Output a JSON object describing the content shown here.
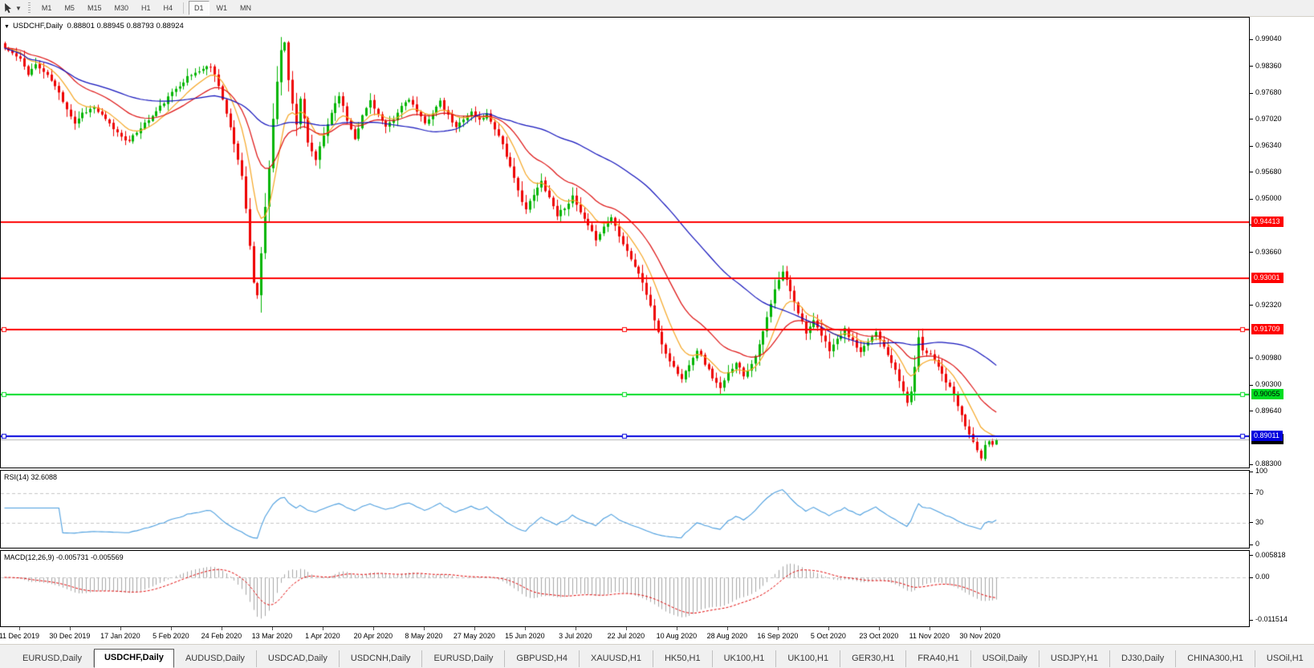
{
  "toolbar": {
    "timeframes": [
      "M1",
      "M5",
      "M15",
      "M30",
      "H1",
      "H4",
      "D1",
      "W1",
      "MN"
    ],
    "active_timeframe": "D1",
    "separator_after": "H4",
    "dropdown_caret_glyph": "▼"
  },
  "chart": {
    "title_symbol": "USDCHF,Daily",
    "title_ohlc": "0.88801 0.88945 0.88793 0.88924",
    "expand_glyph": "▼"
  },
  "price_axis": {
    "ticks": [
      "0.99040",
      "0.98360",
      "0.97680",
      "0.97020",
      "0.96340",
      "0.95680",
      "0.95000",
      "0.94340",
      "0.93660",
      "0.92320",
      "0.90980",
      "0.90300",
      "0.89640",
      "0.88300"
    ]
  },
  "rsi": {
    "label": "RSI(14) 32.6088",
    "value": 32.6088,
    "axis_labels": [
      "100",
      "70",
      "30",
      "0"
    ],
    "dashed_levels": [
      70,
      30
    ],
    "line_color": "#4a9dde"
  },
  "macd": {
    "label": "MACD(12,26,9) -0.005731 -0.005569",
    "macd_value": -0.005731,
    "signal_value": -0.005569,
    "axis_labels": [
      "0.005818",
      "0.00",
      "-0.011514"
    ],
    "axis_values": [
      0.005818,
      0.0,
      -0.011514
    ],
    "histogram_color": "#a6a6a6",
    "signal_color": "#e00000"
  },
  "dates": [
    "11 Dec 2019",
    "30 Dec 2019",
    "17 Jan 2020",
    "5 Feb 2020",
    "24 Feb 2020",
    "13 Mar 2020",
    "1 Apr 2020",
    "20 Apr 2020",
    "8 May 2020",
    "27 May 2020",
    "15 Jun 2020",
    "3 Jul 2020",
    "22 Jul 2020",
    "10 Aug 2020",
    "28 Aug 2020",
    "16 Sep 2020",
    "5 Oct 2020",
    "23 Oct 2020",
    "11 Nov 2020",
    "30 Nov 2020"
  ],
  "tabs": {
    "items": [
      "EURUSD,Daily",
      "USDCHF,Daily",
      "AUDUSD,Daily",
      "USDCAD,Daily",
      "USDCNH,Daily",
      "EURUSD,Daily",
      "GBPUSD,H4",
      "XAUUSD,H1",
      "HK50,H1",
      "UK100,H1",
      "UK100,H1",
      "GER30,H1",
      "FRA40,H1",
      "USOil,Daily",
      "USDJPY,H1",
      "DJ30,Daily",
      "CHINA300,H1",
      "USOil,H1"
    ],
    "active_index": 1,
    "scroll_left_glyph": "◀",
    "scroll_right_glyph": "▶"
  },
  "chart_data": {
    "type": "candlestick",
    "symbol": "USDCHF",
    "period": "Daily",
    "bars": 256,
    "seed": 11,
    "noise": 0.00045,
    "price_max": 0.99588,
    "price_min": 0.8822,
    "last_candle": {
      "open": 0.88801,
      "high": 0.88945,
      "low": 0.88793,
      "close": 0.88924
    },
    "anchors": [
      [
        0,
        0.9882
      ],
      [
        2,
        0.9868
      ],
      [
        4,
        0.9852
      ],
      [
        6,
        0.9818
      ],
      [
        8,
        0.984
      ],
      [
        10,
        0.9822
      ],
      [
        12,
        0.98
      ],
      [
        14,
        0.9768
      ],
      [
        16,
        0.973
      ],
      [
        18,
        0.9692
      ],
      [
        20,
        0.9718
      ],
      [
        23,
        0.9732
      ],
      [
        26,
        0.97
      ],
      [
        29,
        0.9668
      ],
      [
        32,
        0.9645
      ],
      [
        35,
        0.9682
      ],
      [
        38,
        0.971
      ],
      [
        41,
        0.9745
      ],
      [
        44,
        0.978
      ],
      [
        47,
        0.9808
      ],
      [
        50,
        0.9825
      ],
      [
        53,
        0.9838
      ],
      [
        55,
        0.979
      ],
      [
        57,
        0.9715
      ],
      [
        59,
        0.964
      ],
      [
        61,
        0.956
      ],
      [
        62,
        0.948
      ],
      [
        63,
        0.938
      ],
      [
        64,
        0.929
      ],
      [
        65,
        0.9255
      ],
      [
        66,
        0.9365
      ],
      [
        67,
        0.948
      ],
      [
        68,
        0.958
      ],
      [
        69,
        0.97
      ],
      [
        70,
        0.98
      ],
      [
        71,
        0.988
      ],
      [
        72,
        0.9895
      ],
      [
        73,
        0.98
      ],
      [
        74,
        0.9745
      ],
      [
        75,
        0.969
      ],
      [
        76,
        0.9755
      ],
      [
        77,
        0.97
      ],
      [
        78,
        0.964
      ],
      [
        80,
        0.96
      ],
      [
        82,
        0.966
      ],
      [
        84,
        0.972
      ],
      [
        86,
        0.9765
      ],
      [
        88,
        0.97
      ],
      [
        90,
        0.9655
      ],
      [
        92,
        0.971
      ],
      [
        94,
        0.975
      ],
      [
        96,
        0.9715
      ],
      [
        98,
        0.968
      ],
      [
        100,
        0.97
      ],
      [
        102,
        0.9735
      ],
      [
        104,
        0.9755
      ],
      [
        106,
        0.972
      ],
      [
        108,
        0.969
      ],
      [
        110,
        0.972
      ],
      [
        112,
        0.9745
      ],
      [
        114,
        0.971
      ],
      [
        116,
        0.968
      ],
      [
        118,
        0.9705
      ],
      [
        120,
        0.972
      ],
      [
        122,
        0.97
      ],
      [
        124,
        0.9715
      ],
      [
        126,
        0.968
      ],
      [
        128,
        0.964
      ],
      [
        130,
        0.958
      ],
      [
        132,
        0.952
      ],
      [
        134,
        0.9475
      ],
      [
        136,
        0.951
      ],
      [
        138,
        0.9545
      ],
      [
        140,
        0.9505
      ],
      [
        142,
        0.946
      ],
      [
        144,
        0.948
      ],
      [
        146,
        0.9505
      ],
      [
        148,
        0.9465
      ],
      [
        150,
        0.943
      ],
      [
        152,
        0.94
      ],
      [
        154,
        0.943
      ],
      [
        156,
        0.9455
      ],
      [
        158,
        0.941
      ],
      [
        160,
        0.937
      ],
      [
        162,
        0.933
      ],
      [
        164,
        0.929
      ],
      [
        166,
        0.923
      ],
      [
        168,
        0.916
      ],
      [
        170,
        0.911
      ],
      [
        172,
        0.9075
      ],
      [
        174,
        0.9045
      ],
      [
        176,
        0.9085
      ],
      [
        178,
        0.912
      ],
      [
        180,
        0.9085
      ],
      [
        182,
        0.905
      ],
      [
        184,
        0.902
      ],
      [
        186,
        0.906
      ],
      [
        188,
        0.909
      ],
      [
        190,
        0.9055
      ],
      [
        192,
        0.9085
      ],
      [
        194,
        0.913
      ],
      [
        196,
        0.92
      ],
      [
        198,
        0.927
      ],
      [
        200,
        0.9318
      ],
      [
        202,
        0.927
      ],
      [
        204,
        0.9215
      ],
      [
        206,
        0.9165
      ],
      [
        208,
        0.919
      ],
      [
        210,
        0.9155
      ],
      [
        212,
        0.912
      ],
      [
        214,
        0.9145
      ],
      [
        216,
        0.917
      ],
      [
        218,
        0.914
      ],
      [
        220,
        0.911
      ],
      [
        222,
        0.914
      ],
      [
        224,
        0.9165
      ],
      [
        226,
        0.913
      ],
      [
        228,
        0.909
      ],
      [
        230,
        0.904
      ],
      [
        232,
        0.8988
      ],
      [
        233,
        0.901
      ],
      [
        234,
        0.908
      ],
      [
        235,
        0.9148
      ],
      [
        236,
        0.912
      ],
      [
        238,
        0.911
      ],
      [
        240,
        0.908
      ],
      [
        242,
        0.904
      ],
      [
        244,
        0.9005
      ],
      [
        246,
        0.895
      ],
      [
        248,
        0.8905
      ],
      [
        250,
        0.8868
      ],
      [
        251,
        0.8845
      ],
      [
        252,
        0.8875
      ],
      [
        253,
        0.889
      ],
      [
        254,
        0.888
      ],
      [
        255,
        0.88924
      ]
    ],
    "moving_averages": [
      {
        "name": "fast",
        "type": "ema",
        "period": 9,
        "color": "#f5a623"
      },
      {
        "name": "medium",
        "type": "ema",
        "period": 22,
        "color": "#dd1111"
      },
      {
        "name": "slow",
        "type": "sma",
        "period": 55,
        "color": "#1111bb"
      }
    ],
    "levels": [
      {
        "label": "0.94413",
        "price": 0.94413,
        "color": "#fe0000",
        "text_color": "#ffffff",
        "width": 2,
        "handles": false
      },
      {
        "label": "0.93001",
        "price": 0.93001,
        "color": "#fe0000",
        "text_color": "#ffffff",
        "width": 2,
        "handles": false
      },
      {
        "label": "0.91709",
        "price": 0.91709,
        "color": "#fe0000",
        "text_color": "#ffffff",
        "width": 2,
        "handles": true
      },
      {
        "label": "0.90055",
        "price": 0.90055,
        "color": "#00dd22",
        "text_color": "#000000",
        "width": 2,
        "handles": true
      },
      {
        "label": "0.89011",
        "price": 0.89011,
        "color": "#0000dd",
        "text_color": "#ffffff",
        "width": 2,
        "handles": true
      }
    ],
    "current_price": {
      "label": "0.88924",
      "price": 0.88924,
      "line_color": "#b0b0b0",
      "badge_color": "#000000",
      "text_color": "#ffffff"
    },
    "candle_up_color": "#00b400",
    "candle_up_border": "#008f00",
    "candle_down_color": "#ee0000",
    "candle_down_border": "#c40000",
    "indicators_shown": [
      "RSI(14)",
      "MACD(12,26,9)"
    ]
  }
}
